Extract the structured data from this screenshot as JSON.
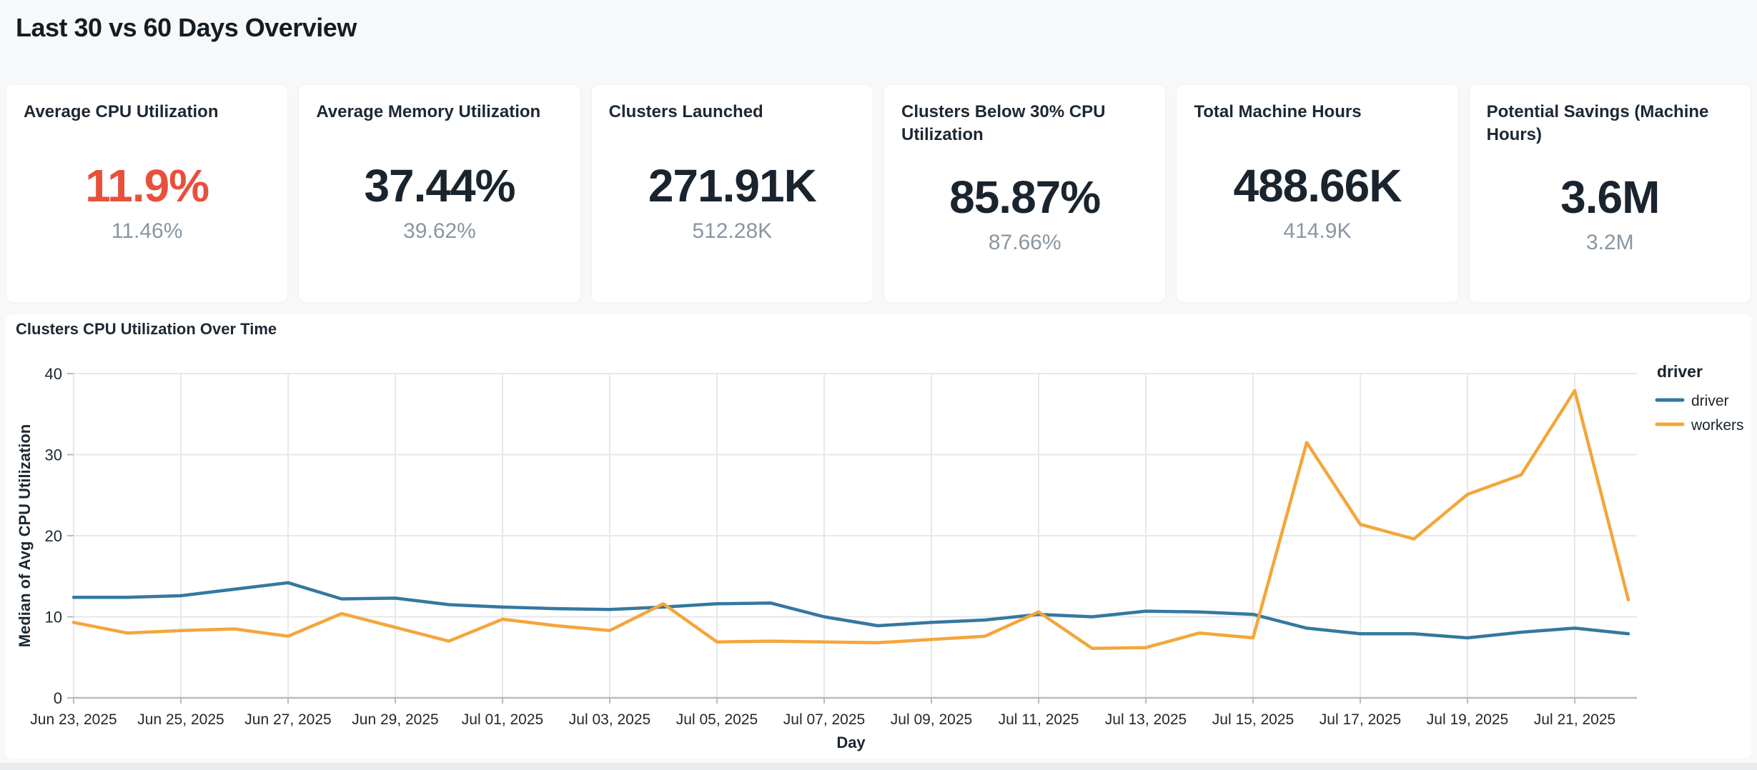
{
  "page": {
    "title": "Last 30 vs 60 Days Overview"
  },
  "colors": {
    "kpi_alert": "#e8503c",
    "kpi_normal": "#1a242e",
    "driver_line": "#35789f",
    "workers_line": "#f4a63b",
    "grid": "#e6e8ea",
    "axis": "#b7bcc1"
  },
  "kpi_cards": [
    {
      "title": "Average CPU Utilization",
      "value": "11.9%",
      "previous": "11.46%",
      "value_color": "#e8503c"
    },
    {
      "title": "Average Memory Utilization",
      "value": "37.44%",
      "previous": "39.62%",
      "value_color": "#1a242e"
    },
    {
      "title": "Clusters Launched",
      "value": "271.91K",
      "previous": "512.28K",
      "value_color": "#1a242e"
    },
    {
      "title": "Clusters Below 30% CPU Utilization",
      "value": "85.87%",
      "previous": "87.66%",
      "value_color": "#1a242e"
    },
    {
      "title": "Total Machine Hours",
      "value": "488.66K",
      "previous": "414.9K",
      "value_color": "#1a242e"
    },
    {
      "title": "Potential Savings (Machine Hours)",
      "value": "3.6M",
      "previous": "3.2M",
      "value_color": "#1a242e"
    }
  ],
  "chart": {
    "title": "Clusters CPU Utilization Over Time"
  },
  "chart_data": {
    "type": "line",
    "title": "Clusters CPU Utilization Over Time",
    "xlabel": "Day",
    "ylabel": "Median of Avg CPU Utilization",
    "ylim": [
      0,
      40
    ],
    "y_ticks": [
      0,
      10,
      20,
      30,
      40
    ],
    "grid": true,
    "legend": {
      "title": "driver",
      "position": "top-right",
      "entries": [
        {
          "name": "driver",
          "color": "#35789f"
        },
        {
          "name": "workers",
          "color": "#f4a63b"
        }
      ]
    },
    "x": [
      "Jun 23, 2025",
      "Jun 24, 2025",
      "Jun 25, 2025",
      "Jun 26, 2025",
      "Jun 27, 2025",
      "Jun 28, 2025",
      "Jun 29, 2025",
      "Jun 30, 2025",
      "Jul 01, 2025",
      "Jul 02, 2025",
      "Jul 03, 2025",
      "Jul 04, 2025",
      "Jul 05, 2025",
      "Jul 06, 2025",
      "Jul 07, 2025",
      "Jul 08, 2025",
      "Jul 09, 2025",
      "Jul 10, 2025",
      "Jul 11, 2025",
      "Jul 12, 2025",
      "Jul 13, 2025",
      "Jul 14, 2025",
      "Jul 15, 2025",
      "Jul 16, 2025",
      "Jul 17, 2025",
      "Jul 18, 2025",
      "Jul 19, 2025",
      "Jul 20, 2025",
      "Jul 21, 2025",
      "Jul 22, 2025"
    ],
    "x_tick_labels": [
      "Jun 23, 2025",
      "Jun 25, 2025",
      "Jun 27, 2025",
      "Jun 29, 2025",
      "Jul 01, 2025",
      "Jul 03, 2025",
      "Jul 05, 2025",
      "Jul 07, 2025",
      "Jul 09, 2025",
      "Jul 11, 2025",
      "Jul 13, 2025",
      "Jul 15, 2025",
      "Jul 17, 2025",
      "Jul 19, 2025",
      "Jul 21, 2025"
    ],
    "series": [
      {
        "name": "driver",
        "color": "#35789f",
        "values": [
          12.4,
          12.4,
          12.6,
          13.4,
          14.2,
          12.2,
          12.3,
          11.5,
          11.2,
          11.0,
          10.9,
          11.2,
          11.6,
          11.7,
          10.0,
          8.9,
          9.3,
          9.6,
          10.3,
          10.0,
          10.7,
          10.6,
          10.3,
          8.6,
          7.9,
          7.9,
          7.4,
          8.1,
          8.6,
          7.9
        ]
      },
      {
        "name": "workers",
        "color": "#f4a63b",
        "values": [
          9.3,
          8.0,
          8.3,
          8.5,
          7.6,
          10.4,
          8.7,
          7.0,
          9.7,
          8.9,
          8.3,
          11.6,
          6.9,
          7.0,
          6.9,
          6.8,
          7.2,
          7.6,
          10.6,
          6.1,
          6.2,
          8.0,
          7.4,
          31.5,
          21.4,
          19.6,
          25.1,
          27.5,
          37.9,
          12.1
        ]
      }
    ]
  }
}
